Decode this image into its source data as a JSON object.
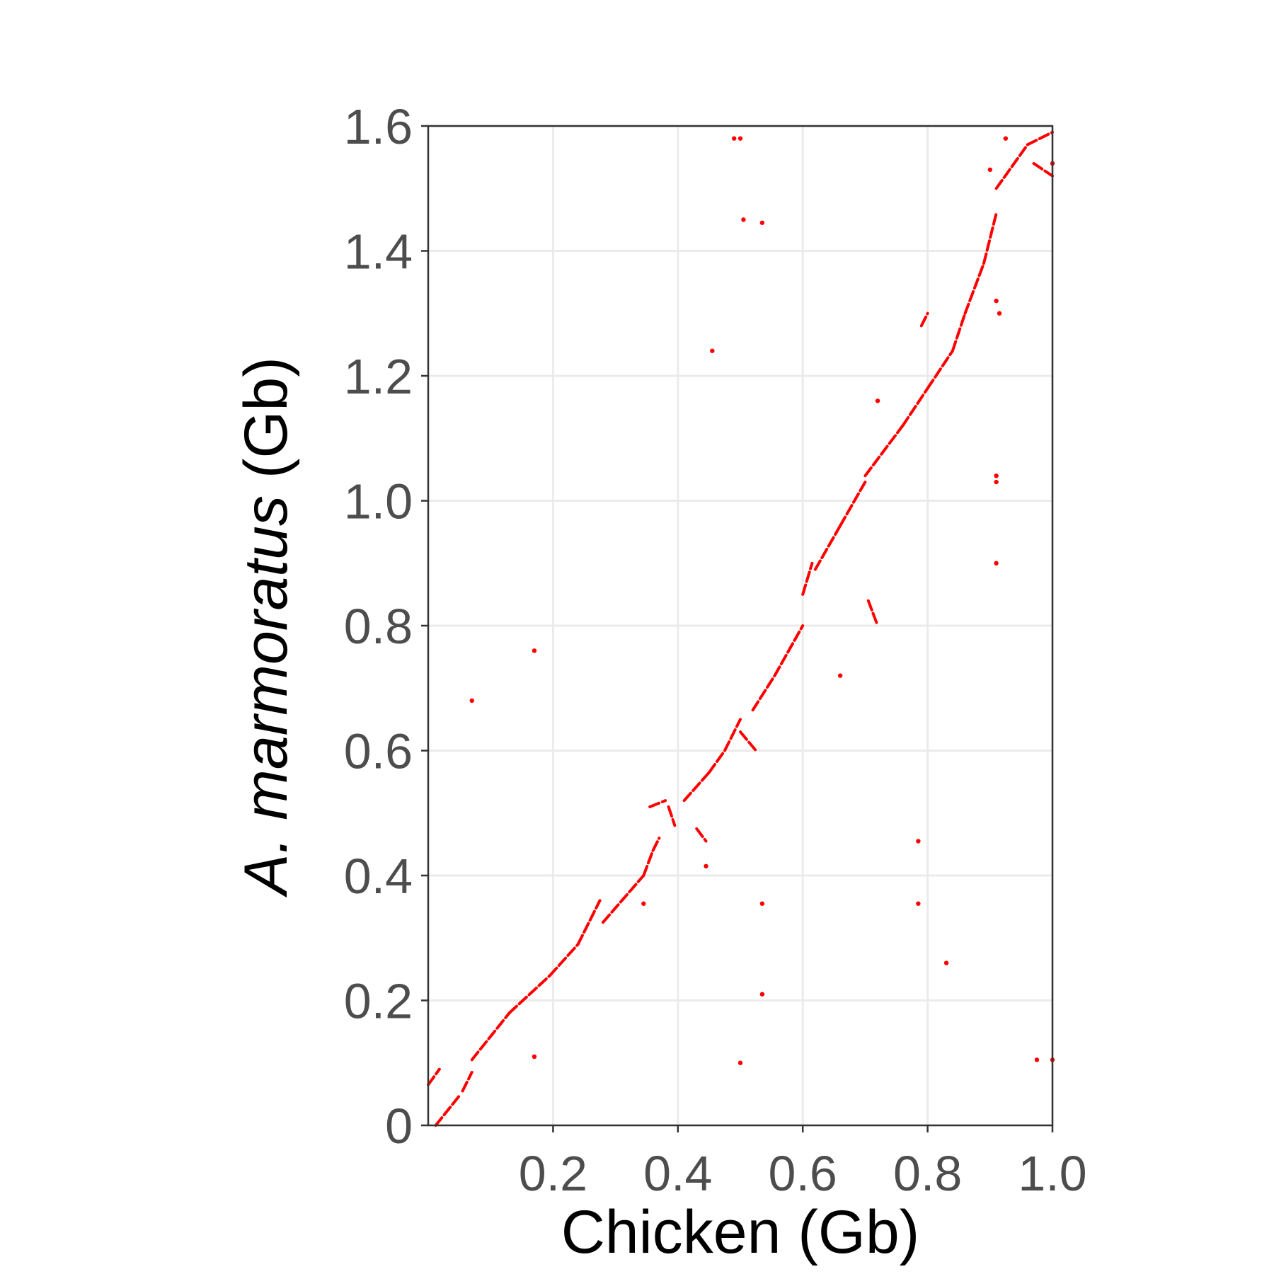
{
  "chart_data": {
    "type": "scatter",
    "xlabel": "Chicken  (Gb)",
    "ylabel_italic": "A. marmoratus",
    "ylabel_rest": " (Gb)",
    "xlim": [
      0,
      1.0
    ],
    "ylim": [
      0,
      1.6
    ],
    "x_ticks": [
      0.2,
      0.4,
      0.6,
      0.8,
      1.0
    ],
    "x_tick_labels": [
      "0.2",
      "0.4",
      "0.6",
      "0.8",
      "1.0"
    ],
    "y_ticks": [
      0,
      0.2,
      0.4,
      0.6,
      0.8,
      1.0,
      1.2,
      1.4,
      1.6
    ],
    "y_tick_labels": [
      "0",
      "0.2",
      "0.4",
      "0.6",
      "0.8",
      "1.0",
      "1.2",
      "1.4",
      "1.6"
    ],
    "grid": true,
    "point_color": "#ff0000",
    "segments": [
      [
        [
          0.012,
          0.0
        ],
        [
          0.052,
          0.05
        ]
      ],
      [
        [
          0.055,
          0.055
        ],
        [
          0.07,
          0.085
        ]
      ],
      [
        [
          0.0,
          0.065
        ],
        [
          0.018,
          0.09
        ]
      ],
      [
        [
          0.07,
          0.105
        ],
        [
          0.13,
          0.18
        ]
      ],
      [
        [
          0.13,
          0.18
        ],
        [
          0.195,
          0.24
        ]
      ],
      [
        [
          0.195,
          0.24
        ],
        [
          0.24,
          0.29
        ]
      ],
      [
        [
          0.24,
          0.29
        ],
        [
          0.275,
          0.36
        ]
      ],
      [
        [
          0.28,
          0.325
        ],
        [
          0.345,
          0.4
        ]
      ],
      [
        [
          0.345,
          0.4
        ],
        [
          0.36,
          0.44
        ]
      ],
      [
        [
          0.36,
          0.44
        ],
        [
          0.37,
          0.46
        ]
      ],
      [
        [
          0.355,
          0.51
        ],
        [
          0.38,
          0.52
        ]
      ],
      [
        [
          0.385,
          0.51
        ],
        [
          0.395,
          0.48
        ]
      ],
      [
        [
          0.41,
          0.52
        ],
        [
          0.45,
          0.565
        ]
      ],
      [
        [
          0.43,
          0.475
        ],
        [
          0.445,
          0.455
        ]
      ],
      [
        [
          0.45,
          0.565
        ],
        [
          0.475,
          0.6
        ]
      ],
      [
        [
          0.475,
          0.6
        ],
        [
          0.5,
          0.65
        ]
      ],
      [
        [
          0.52,
          0.665
        ],
        [
          0.555,
          0.72
        ]
      ],
      [
        [
          0.555,
          0.72
        ],
        [
          0.6,
          0.8
        ]
      ],
      [
        [
          0.5,
          0.63
        ],
        [
          0.525,
          0.6
        ]
      ],
      [
        [
          0.6,
          0.85
        ],
        [
          0.615,
          0.9
        ]
      ],
      [
        [
          0.62,
          0.89
        ],
        [
          0.66,
          0.96
        ]
      ],
      [
        [
          0.66,
          0.96
        ],
        [
          0.7,
          1.03
        ]
      ],
      [
        [
          0.7,
          1.04
        ],
        [
          0.76,
          1.12
        ]
      ],
      [
        [
          0.705,
          0.84
        ],
        [
          0.72,
          0.8
        ]
      ],
      [
        [
          0.76,
          1.12
        ],
        [
          0.8,
          1.18
        ]
      ],
      [
        [
          0.8,
          1.18
        ],
        [
          0.84,
          1.24
        ]
      ],
      [
        [
          0.84,
          1.24
        ],
        [
          0.86,
          1.3
        ]
      ],
      [
        [
          0.86,
          1.3
        ],
        [
          0.89,
          1.38
        ]
      ],
      [
        [
          0.89,
          1.38
        ],
        [
          0.91,
          1.46
        ]
      ],
      [
        [
          0.91,
          1.5
        ],
        [
          0.96,
          1.57
        ]
      ],
      [
        [
          0.96,
          1.57
        ],
        [
          1.0,
          1.59
        ]
      ],
      [
        [
          0.97,
          1.54
        ],
        [
          1.0,
          1.52
        ]
      ],
      [
        [
          0.79,
          1.28
        ],
        [
          0.8,
          1.3
        ]
      ]
    ],
    "points": [
      [
        0.07,
        0.68
      ],
      [
        0.17,
        0.76
      ],
      [
        0.17,
        0.11
      ],
      [
        0.345,
        0.355
      ],
      [
        0.445,
        0.415
      ],
      [
        0.455,
        1.24
      ],
      [
        0.49,
        1.58
      ],
      [
        0.5,
        1.58
      ],
      [
        0.505,
        1.45
      ],
      [
        0.535,
        1.445
      ],
      [
        0.535,
        0.355
      ],
      [
        0.535,
        0.21
      ],
      [
        0.5,
        0.1
      ],
      [
        0.66,
        0.72
      ],
      [
        0.72,
        1.16
      ],
      [
        0.785,
        0.455
      ],
      [
        0.785,
        0.355
      ],
      [
        0.83,
        0.26
      ],
      [
        0.9,
        1.53
      ],
      [
        0.91,
        1.04
      ],
      [
        0.91,
        1.03
      ],
      [
        0.91,
        0.9
      ],
      [
        0.91,
        1.32
      ],
      [
        0.915,
        1.3
      ],
      [
        0.925,
        1.58
      ],
      [
        0.975,
        0.105
      ],
      [
        1.0,
        0.105
      ],
      [
        1.0,
        1.54
      ]
    ]
  }
}
